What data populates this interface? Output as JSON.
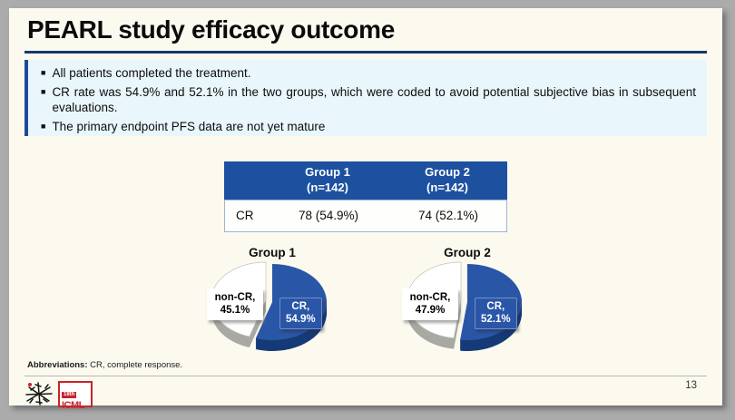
{
  "slide": {
    "title": "PEARL study efficacy outcome",
    "bullets": [
      "All patients completed the treatment.",
      "CR rate was 54.9% and 52.1% in the two groups, which were coded to avoid potential subjective bias in subsequent evaluations.",
      "The primary endpoint PFS data are not yet mature"
    ],
    "footnote_label": "Abbreviations:",
    "footnote_text": " CR, complete response.",
    "page_number": "13",
    "logo": {
      "edition": "18th",
      "name": "ICML"
    }
  },
  "table": {
    "col_headers": [
      "Group 1\n(n=142)",
      "Group 2\n(n=142)"
    ],
    "rows": [
      {
        "label": "CR",
        "values": [
          "78 (54.9%)",
          "74 (52.1%)"
        ]
      }
    ]
  },
  "chart_data": [
    {
      "type": "pie",
      "title": "Group 1",
      "labels": [
        "CR",
        "non-CR"
      ],
      "values": [
        54.9,
        45.1
      ],
      "data_labels": [
        "CR,\n54.9%",
        "non-CR,\n45.1%"
      ],
      "slices": [
        {
          "label": "CR",
          "value": 54.9,
          "color": "#2A56A7",
          "side_color": "#153A77",
          "edge": "none",
          "offset": [
            0,
            0
          ]
        },
        {
          "label": "non-CR",
          "value": 45.1,
          "color": "#FFFFFF",
          "side_color": "#A9A9A4",
          "edge": "#C2C2BB",
          "offset": [
            -7,
            -2
          ]
        }
      ],
      "style": "3d-exploded",
      "legend": "none"
    },
    {
      "type": "pie",
      "title": "Group 2",
      "labels": [
        "CR",
        "non-CR"
      ],
      "values": [
        52.1,
        47.9
      ],
      "data_labels": [
        "CR,\n52.1%",
        "non-CR,\n47.9%"
      ],
      "slices": [
        {
          "label": "CR",
          "value": 52.1,
          "color": "#2A56A7",
          "side_color": "#153A77",
          "edge": "none",
          "offset": [
            0,
            0
          ]
        },
        {
          "label": "non-CR",
          "value": 47.9,
          "color": "#FFFFFF",
          "side_color": "#A9A9A4",
          "edge": "#C2C2BB",
          "offset": [
            -7,
            -2
          ]
        }
      ],
      "style": "3d-exploded",
      "legend": "none"
    }
  ],
  "colors": {
    "frame_gray": "#ABABAB",
    "slide_bg": "#FCFAEF",
    "underline_navy": "#16396F",
    "bullets_bg": "#E9F6FC",
    "bullets_border": "#1B4B99",
    "accent_blue": "#1D51A0",
    "pie_blue": "#2A56A7",
    "table_border": "#9FB4CE",
    "logo_red": "#C8242B"
  }
}
